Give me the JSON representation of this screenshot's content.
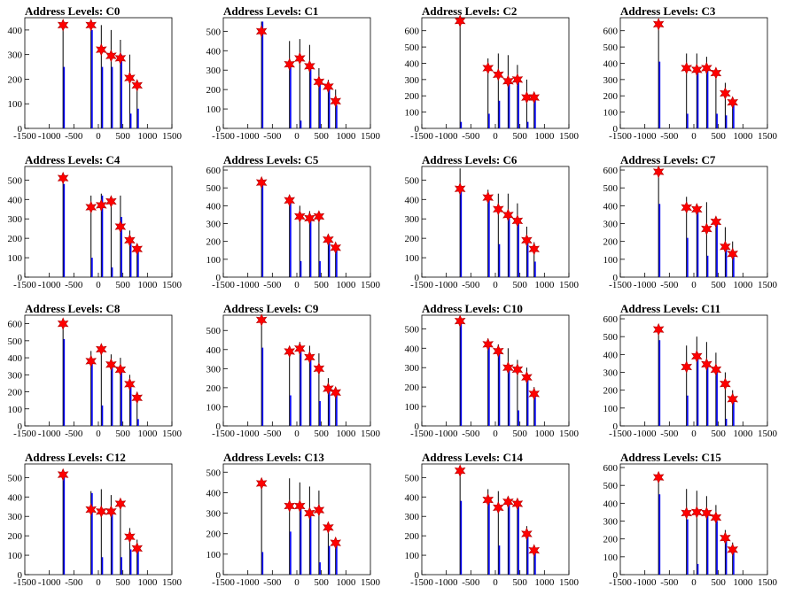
{
  "chart_data": [
    {
      "title": "Address Levels: C0",
      "type": "histogram",
      "xlim": [
        -1500,
        1500
      ],
      "ylim": [
        0,
        450
      ],
      "yticks": [
        0,
        100,
        200,
        300,
        400
      ],
      "x": [
        -720,
        -150,
        60,
        260,
        450,
        640,
        790
      ],
      "markers": [
        420,
        420,
        320,
        295,
        285,
        205,
        175
      ],
      "peaks": [
        {
          "x": -720,
          "black": 420,
          "blue": 250
        },
        {
          "x": -150,
          "black": 420,
          "blue": 400
        },
        {
          "x": 60,
          "black": 420,
          "blue": 250
        },
        {
          "x": 260,
          "black": 400,
          "blue": 250
        },
        {
          "x": 450,
          "black": 360,
          "blue": 300
        },
        {
          "x": 640,
          "black": 300,
          "blue": 60
        },
        {
          "x": 790,
          "black": 180,
          "blue": 80
        }
      ]
    },
    {
      "title": "Address Levels: C1",
      "type": "histogram",
      "xlim": [
        -1500,
        1500
      ],
      "ylim": [
        0,
        570
      ],
      "yticks": [
        0,
        100,
        200,
        300,
        400,
        500
      ],
      "x": [
        -720,
        -150,
        60,
        260,
        450,
        640,
        790
      ],
      "markers": [
        500,
        330,
        360,
        320,
        240,
        215,
        140
      ],
      "peaks": [
        {
          "x": -720,
          "black": 550,
          "blue": 550
        },
        {
          "x": -150,
          "black": 450,
          "blue": 330
        },
        {
          "x": 60,
          "black": 460,
          "blue": 40
        },
        {
          "x": 260,
          "black": 430,
          "blue": 320
        },
        {
          "x": 450,
          "black": 310,
          "blue": 240
        },
        {
          "x": 640,
          "black": 250,
          "blue": 210
        },
        {
          "x": 790,
          "black": 200,
          "blue": 120
        }
      ]
    },
    {
      "title": "Address Levels: C2",
      "type": "histogram",
      "xlim": [
        -1500,
        1500
      ],
      "ylim": [
        0,
        680
      ],
      "yticks": [
        0,
        100,
        200,
        300,
        400,
        500,
        600
      ],
      "x": [
        -720,
        -150,
        60,
        260,
        450,
        640,
        790
      ],
      "markers": [
        660,
        370,
        330,
        290,
        300,
        190,
        190
      ],
      "peaks": [
        {
          "x": -720,
          "black": 660,
          "blue": 40
        },
        {
          "x": -150,
          "black": 430,
          "blue": 90
        },
        {
          "x": 60,
          "black": 460,
          "blue": 170
        },
        {
          "x": 260,
          "black": 450,
          "blue": 290
        },
        {
          "x": 450,
          "black": 390,
          "blue": 300
        },
        {
          "x": 640,
          "black": 300,
          "blue": 40
        },
        {
          "x": 790,
          "black": 210,
          "blue": 190
        }
      ]
    },
    {
      "title": "Address Levels: C3",
      "type": "histogram",
      "xlim": [
        -1500,
        1500
      ],
      "ylim": [
        0,
        680
      ],
      "yticks": [
        0,
        100,
        200,
        300,
        400,
        500,
        600
      ],
      "x": [
        -720,
        -150,
        60,
        260,
        450,
        640,
        790
      ],
      "markers": [
        640,
        370,
        360,
        370,
        340,
        215,
        160
      ],
      "peaks": [
        {
          "x": -720,
          "black": 640,
          "blue": 410
        },
        {
          "x": -150,
          "black": 460,
          "blue": 90
        },
        {
          "x": 60,
          "black": 460,
          "blue": 360
        },
        {
          "x": 260,
          "black": 440,
          "blue": 360
        },
        {
          "x": 450,
          "black": 360,
          "blue": 90
        },
        {
          "x": 640,
          "black": 280,
          "blue": 80
        },
        {
          "x": 790,
          "black": 190,
          "blue": 150
        }
      ]
    },
    {
      "title": "Address Levels: C4",
      "type": "histogram",
      "xlim": [
        -1500,
        1500
      ],
      "ylim": [
        0,
        570
      ],
      "yticks": [
        0,
        100,
        200,
        300,
        400,
        500
      ],
      "x": [
        -720,
        -150,
        60,
        260,
        450,
        640,
        790
      ],
      "markers": [
        510,
        360,
        370,
        390,
        260,
        190,
        145
      ],
      "peaks": [
        {
          "x": -720,
          "black": 510,
          "blue": 480
        },
        {
          "x": -150,
          "black": 420,
          "blue": 100
        },
        {
          "x": 60,
          "black": 430,
          "blue": 420
        },
        {
          "x": 260,
          "black": 400,
          "blue": 50
        },
        {
          "x": 450,
          "black": 420,
          "blue": 310
        },
        {
          "x": 640,
          "black": 240,
          "blue": 190
        },
        {
          "x": 790,
          "black": 170,
          "blue": 140
        }
      ]
    },
    {
      "title": "Address Levels: C5",
      "type": "histogram",
      "xlim": [
        -1500,
        1500
      ],
      "ylim": [
        0,
        620
      ],
      "yticks": [
        0,
        100,
        200,
        300,
        400,
        500,
        600
      ],
      "x": [
        -720,
        -150,
        60,
        260,
        450,
        640,
        790
      ],
      "markers": [
        530,
        430,
        340,
        330,
        340,
        210,
        165
      ],
      "peaks": [
        {
          "x": -720,
          "black": 530,
          "blue": 530
        },
        {
          "x": -150,
          "black": 440,
          "blue": 430
        },
        {
          "x": 60,
          "black": 400,
          "blue": 90
        },
        {
          "x": 260,
          "black": 370,
          "blue": 320
        },
        {
          "x": 450,
          "black": 350,
          "blue": 90
        },
        {
          "x": 640,
          "black": 240,
          "blue": 210
        },
        {
          "x": 790,
          "black": 180,
          "blue": 150
        }
      ]
    },
    {
      "title": "Address Levels: C6",
      "type": "histogram",
      "xlim": [
        -1500,
        1500
      ],
      "ylim": [
        0,
        570
      ],
      "yticks": [
        0,
        100,
        200,
        300,
        400,
        500
      ],
      "x": [
        -720,
        -150,
        60,
        260,
        450,
        640,
        790
      ],
      "markers": [
        455,
        410,
        350,
        320,
        290,
        190,
        145
      ],
      "peaks": [
        {
          "x": -720,
          "black": 560,
          "blue": 455
        },
        {
          "x": -150,
          "black": 450,
          "blue": 410
        },
        {
          "x": 60,
          "black": 430,
          "blue": 170
        },
        {
          "x": 260,
          "black": 430,
          "blue": 330
        },
        {
          "x": 450,
          "black": 380,
          "blue": 280
        },
        {
          "x": 640,
          "black": 260,
          "blue": 190
        },
        {
          "x": 790,
          "black": 180,
          "blue": 80
        }
      ]
    },
    {
      "title": "Address Levels: C7",
      "type": "histogram",
      "xlim": [
        -1500,
        1500
      ],
      "ylim": [
        0,
        620
      ],
      "yticks": [
        0,
        100,
        200,
        300,
        400,
        500,
        600
      ],
      "x": [
        -720,
        -150,
        60,
        260,
        450,
        640,
        790
      ],
      "markers": [
        590,
        390,
        380,
        270,
        310,
        170,
        130
      ],
      "peaks": [
        {
          "x": -720,
          "black": 590,
          "blue": 410
        },
        {
          "x": -150,
          "black": 450,
          "blue": 220
        },
        {
          "x": 60,
          "black": 410,
          "blue": 370
        },
        {
          "x": 260,
          "black": 420,
          "blue": 120
        },
        {
          "x": 450,
          "black": 330,
          "blue": 310
        },
        {
          "x": 640,
          "black": 280,
          "blue": 170
        },
        {
          "x": 790,
          "black": 200,
          "blue": 130
        }
      ]
    },
    {
      "title": "Address Levels: C8",
      "type": "histogram",
      "xlim": [
        -1500,
        1500
      ],
      "ylim": [
        0,
        650
      ],
      "yticks": [
        0,
        100,
        200,
        300,
        400,
        500,
        600
      ],
      "x": [
        -720,
        -150,
        60,
        260,
        450,
        640,
        790
      ],
      "markers": [
        600,
        380,
        450,
        360,
        330,
        245,
        165
      ],
      "peaks": [
        {
          "x": -720,
          "black": 620,
          "blue": 510
        },
        {
          "x": -150,
          "black": 440,
          "blue": 380
        },
        {
          "x": 60,
          "black": 470,
          "blue": 120
        },
        {
          "x": 260,
          "black": 420,
          "blue": 360
        },
        {
          "x": 450,
          "black": 400,
          "blue": 330
        },
        {
          "x": 640,
          "black": 300,
          "blue": 240
        },
        {
          "x": 790,
          "black": 200,
          "blue": 40
        }
      ]
    },
    {
      "title": "Address Levels: C9",
      "type": "histogram",
      "xlim": [
        -1500,
        1500
      ],
      "ylim": [
        0,
        580
      ],
      "yticks": [
        0,
        100,
        200,
        300,
        400,
        500
      ],
      "x": [
        -720,
        -150,
        60,
        260,
        450,
        640,
        790
      ],
      "markers": [
        555,
        390,
        405,
        360,
        300,
        195,
        175
      ],
      "peaks": [
        {
          "x": -720,
          "black": 570,
          "blue": 410
        },
        {
          "x": -150,
          "black": 400,
          "blue": 160
        },
        {
          "x": 60,
          "black": 440,
          "blue": 400
        },
        {
          "x": 260,
          "black": 420,
          "blue": 360
        },
        {
          "x": 450,
          "black": 380,
          "blue": 130
        },
        {
          "x": 640,
          "black": 250,
          "blue": 195
        },
        {
          "x": 790,
          "black": 190,
          "blue": 170
        }
      ]
    },
    {
      "title": "Address Levels: C10",
      "type": "histogram",
      "xlim": [
        -1500,
        1500
      ],
      "ylim": [
        0,
        570
      ],
      "yticks": [
        0,
        100,
        200,
        300,
        400,
        500
      ],
      "x": [
        -720,
        -150,
        60,
        260,
        450,
        640,
        790
      ],
      "markers": [
        540,
        420,
        385,
        300,
        290,
        250,
        165
      ],
      "peaks": [
        {
          "x": -720,
          "black": 550,
          "blue": 540
        },
        {
          "x": -150,
          "black": 450,
          "blue": 420
        },
        {
          "x": 60,
          "black": 420,
          "blue": 380
        },
        {
          "x": 260,
          "black": 400,
          "blue": 300
        },
        {
          "x": 450,
          "black": 340,
          "blue": 80
        },
        {
          "x": 640,
          "black": 300,
          "blue": 250
        },
        {
          "x": 790,
          "black": 200,
          "blue": 160
        }
      ]
    },
    {
      "title": "Address Levels: C11",
      "type": "histogram",
      "xlim": [
        -1500,
        1500
      ],
      "ylim": [
        0,
        620
      ],
      "yticks": [
        0,
        100,
        200,
        300,
        400,
        500,
        600
      ],
      "x": [
        -720,
        -150,
        60,
        260,
        450,
        640,
        790
      ],
      "markers": [
        540,
        330,
        390,
        345,
        315,
        235,
        150
      ],
      "peaks": [
        {
          "x": -720,
          "black": 560,
          "blue": 480
        },
        {
          "x": -150,
          "black": 450,
          "blue": 170
        },
        {
          "x": 60,
          "black": 500,
          "blue": 380
        },
        {
          "x": 260,
          "black": 470,
          "blue": 330
        },
        {
          "x": 450,
          "black": 410,
          "blue": 310
        },
        {
          "x": 640,
          "black": 300,
          "blue": 40
        },
        {
          "x": 790,
          "black": 200,
          "blue": 140
        }
      ]
    },
    {
      "title": "Address Levels: C12",
      "type": "histogram",
      "xlim": [
        -1500,
        1500
      ],
      "ylim": [
        0,
        570
      ],
      "yticks": [
        0,
        100,
        200,
        300,
        400,
        500
      ],
      "x": [
        -720,
        -150,
        60,
        260,
        450,
        640,
        790
      ],
      "markers": [
        515,
        335,
        325,
        325,
        365,
        195,
        135
      ],
      "peaks": [
        {
          "x": -720,
          "black": 520,
          "blue": 510
        },
        {
          "x": -150,
          "black": 430,
          "blue": 420
        },
        {
          "x": 60,
          "black": 440,
          "blue": 90
        },
        {
          "x": 260,
          "black": 410,
          "blue": 320
        },
        {
          "x": 450,
          "black": 370,
          "blue": 90
        },
        {
          "x": 640,
          "black": 240,
          "blue": 130
        },
        {
          "x": 790,
          "black": 180,
          "blue": 140
        }
      ]
    },
    {
      "title": "Address Levels: C13",
      "type": "histogram",
      "xlim": [
        -1500,
        1500
      ],
      "ylim": [
        0,
        540
      ],
      "yticks": [
        0,
        100,
        200,
        300,
        400,
        500
      ],
      "x": [
        -720,
        -150,
        60,
        260,
        450,
        640,
        790
      ],
      "markers": [
        445,
        335,
        335,
        300,
        315,
        230,
        155
      ],
      "peaks": [
        {
          "x": -720,
          "black": 470,
          "blue": 110
        },
        {
          "x": -150,
          "black": 470,
          "blue": 210
        },
        {
          "x": 60,
          "black": 450,
          "blue": 330
        },
        {
          "x": 260,
          "black": 430,
          "blue": 290
        },
        {
          "x": 450,
          "black": 410,
          "blue": 60
        },
        {
          "x": 640,
          "black": 250,
          "blue": 140
        },
        {
          "x": 790,
          "black": 180,
          "blue": 150
        }
      ]
    },
    {
      "title": "Address Levels: C14",
      "type": "histogram",
      "xlim": [
        -1500,
        1500
      ],
      "ylim": [
        0,
        570
      ],
      "yticks": [
        0,
        100,
        200,
        300,
        400,
        500
      ],
      "x": [
        -720,
        -150,
        60,
        260,
        450,
        640,
        790
      ],
      "markers": [
        535,
        385,
        345,
        375,
        365,
        210,
        125
      ],
      "peaks": [
        {
          "x": -720,
          "black": 540,
          "blue": 380
        },
        {
          "x": -150,
          "black": 440,
          "blue": 380
        },
        {
          "x": 60,
          "black": 430,
          "blue": 150
        },
        {
          "x": 260,
          "black": 400,
          "blue": 360
        },
        {
          "x": 450,
          "black": 350,
          "blue": 360
        },
        {
          "x": 640,
          "black": 250,
          "blue": 200
        },
        {
          "x": 790,
          "black": 150,
          "blue": 130
        }
      ]
    },
    {
      "title": "Address Levels: C15",
      "type": "histogram",
      "xlim": [
        -1500,
        1500
      ],
      "ylim": [
        0,
        620
      ],
      "yticks": [
        0,
        100,
        200,
        300,
        400,
        500,
        600
      ],
      "x": [
        -720,
        -150,
        60,
        260,
        450,
        640,
        790
      ],
      "markers": [
        545,
        345,
        350,
        345,
        320,
        205,
        140
      ],
      "peaks": [
        {
          "x": -720,
          "black": 560,
          "blue": 450
        },
        {
          "x": -150,
          "black": 480,
          "blue": 310
        },
        {
          "x": 60,
          "black": 470,
          "blue": 60
        },
        {
          "x": 260,
          "black": 440,
          "blue": 330
        },
        {
          "x": 450,
          "black": 390,
          "blue": 300
        },
        {
          "x": 640,
          "black": 250,
          "blue": 200
        },
        {
          "x": 790,
          "black": 180,
          "blue": 130
        }
      ]
    }
  ],
  "xticks": [
    -1500,
    -1000,
    -500,
    0,
    500,
    1000,
    1500
  ],
  "colors": {
    "black_hist": "#000000",
    "blue_hist": "#0000ff",
    "marker": "#ff0000",
    "marker_outline": "#b00000"
  },
  "marker_icon": "star-marker"
}
